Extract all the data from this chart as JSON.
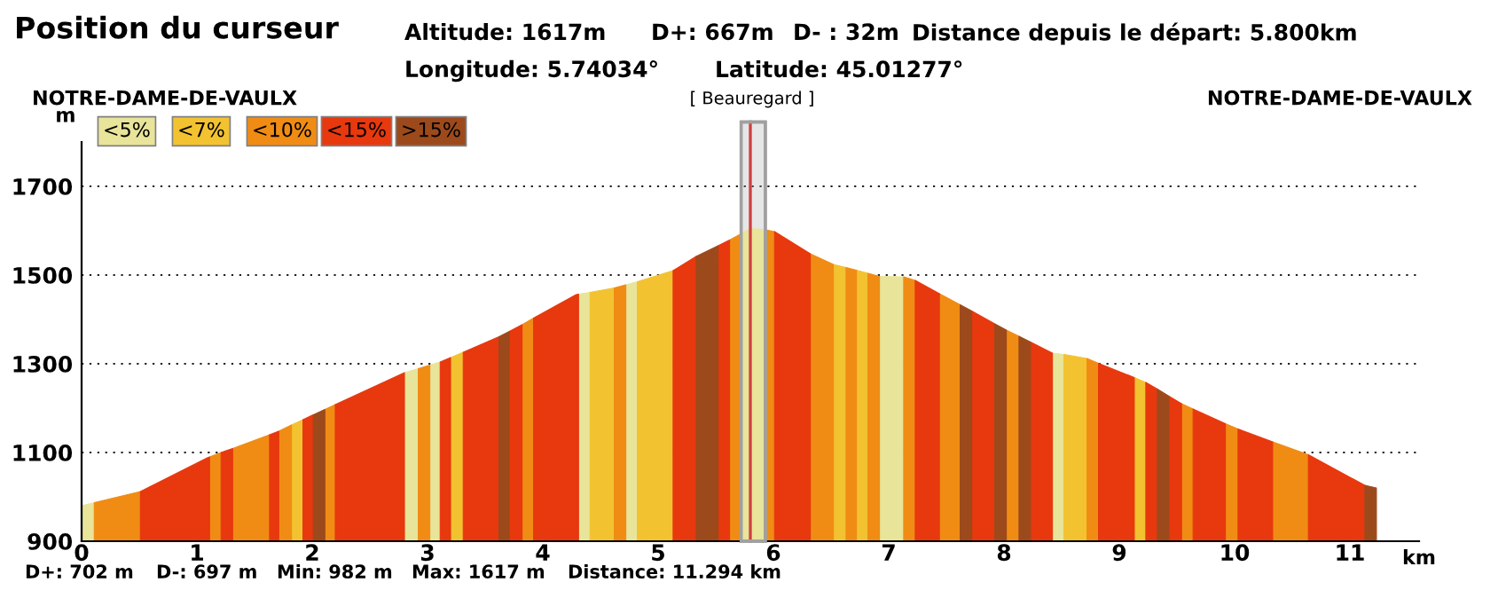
{
  "chart_data": {
    "type": "area",
    "title": "Position du curseur",
    "ylabel": "m",
    "xlabel": "km",
    "annotations": [
      "Altitude: 1617m",
      "D+: 667m",
      "D- : 32m",
      "Distance depuis le départ: 5.800km",
      "Longitude: 5.74034°",
      "Latitude: 45.01277°",
      "NOTRE-DAME-DE-VAULX",
      "[ Beauregard ]",
      "NOTRE-DAME-DE-VAULX",
      "D+: 702 m",
      "D-: 697 m",
      "Min: 982 m",
      "Max: 1617 m",
      "Distance: 11.294 km"
    ],
    "series": [
      {
        "name": "<5%",
        "color": "#e8e49a",
        "x": [
          0,
          0.11,
          null,
          2.8,
          2.92,
          null,
          3.02,
          3.11,
          null,
          4.31,
          4.41,
          null,
          4.72,
          4.82,
          null,
          5.72,
          5.8,
          5.93,
          null,
          6.92,
          7.13,
          null,
          8.42,
          8.52
        ],
        "values": [
          980,
          987,
          null,
          1280,
          1289,
          null,
          1297,
          1304,
          null,
          1457,
          1461,
          null,
          1478,
          1485,
          null,
          1593,
          1605,
          1602,
          null,
          1497,
          1496,
          null,
          1324,
          1321
        ]
      },
      {
        "name": "<7%",
        "color": "#f2c231",
        "x": [
          1.82,
          1.92,
          null,
          3.2,
          3.31,
          null,
          4.41,
          4.62,
          null,
          4.82,
          5.13,
          null,
          6.52,
          6.63,
          null,
          6.72,
          6.82,
          null,
          8.52,
          8.72,
          null,
          9.13,
          9.23
        ],
        "values": [
          1162,
          1174,
          null,
          1314,
          1326,
          null,
          1461,
          1471,
          null,
          1485,
          1510,
          null,
          1524,
          1517,
          null,
          1511,
          1504,
          null,
          1321,
          1312,
          null,
          1269,
          1258
        ]
      },
      {
        "name": "<10%",
        "color": "#f08c14",
        "x": [
          0.11,
          0.51,
          null,
          1.11,
          1.21,
          null,
          1.31,
          1.63,
          null,
          1.71,
          1.82,
          null,
          2.11,
          2.2,
          null,
          2.92,
          3.02,
          null,
          3.82,
          3.92,
          null,
          4.62,
          4.72,
          null,
          5.62,
          5.72,
          null,
          5.93,
          6.01,
          null,
          6.32,
          6.52,
          null,
          6.63,
          6.72,
          null,
          6.82,
          6.92,
          null,
          7.13,
          7.23,
          null,
          7.44,
          7.62,
          null,
          8.02,
          8.13,
          null,
          8.72,
          8.82,
          null,
          9.54,
          9.64,
          null,
          9.92,
          10.03,
          null,
          10.33,
          10.64
        ],
        "values": [
          987,
          1012,
          null,
          1090,
          1100,
          null,
          1109,
          1140,
          null,
          1148,
          1162,
          null,
          1197,
          1208,
          null,
          1289,
          1297,
          null,
          1388,
          1403,
          null,
          1471,
          1478,
          null,
          1579,
          1593,
          null,
          1602,
          1598,
          null,
          1548,
          1524,
          null,
          1517,
          1511,
          null,
          1504,
          1497,
          null,
          1496,
          1488,
          null,
          1458,
          1433,
          null,
          1376,
          1362,
          null,
          1312,
          1301,
          null,
          1210,
          1198,
          null,
          1165,
          1153,
          null,
          1124,
          1095
        ]
      },
      {
        "name": "<15%",
        "color": "#e8380e",
        "x": [
          0.51,
          1.09,
          1.11,
          null,
          1.21,
          1.31,
          null,
          1.63,
          1.71,
          null,
          1.92,
          2.0,
          2.01,
          null,
          2.2,
          2.8,
          null,
          3.11,
          3.2,
          null,
          3.31,
          3.62,
          null,
          3.71,
          3.82,
          null,
          3.92,
          4.29,
          4.31,
          null,
          5.13,
          5.33,
          null,
          5.52,
          5.62,
          null,
          6.01,
          6.32,
          null,
          7.23,
          7.44,
          null,
          7.72,
          7.92,
          null,
          8.23,
          8.42,
          null,
          8.82,
          9.13,
          null,
          9.23,
          9.33,
          null,
          9.43,
          9.54,
          null,
          9.64,
          9.92,
          null,
          10.03,
          10.33,
          null,
          10.64,
          11.13
        ],
        "values": [
          1012,
          1088,
          1090,
          null,
          1100,
          1109,
          null,
          1140,
          1148,
          null,
          1174,
          1184,
          1185,
          null,
          1208,
          1280,
          null,
          1304,
          1314,
          null,
          1326,
          1361,
          null,
          1373,
          1388,
          null,
          1403,
          1456,
          1457,
          null,
          1510,
          1542,
          null,
          1566,
          1579,
          null,
          1598,
          1548,
          null,
          1488,
          1458,
          null,
          1419,
          1390,
          null,
          1349,
          1324,
          null,
          1301,
          1269,
          null,
          1258,
          1243,
          null,
          1227,
          1210,
          null,
          1198,
          1165,
          null,
          1153,
          1124,
          null,
          1095,
          1026
        ]
      },
      {
        "name": ">15%",
        "color": "#9c4a1c",
        "x": [
          2.01,
          2.11,
          null,
          3.62,
          3.71,
          null,
          5.33,
          5.52,
          null,
          7.62,
          7.72,
          null,
          7.92,
          8.02,
          null,
          8.13,
          8.23,
          null,
          9.33,
          9.43,
          null,
          11.13,
          11.23
        ],
        "values": [
          1185,
          1197,
          null,
          1361,
          1373,
          null,
          1542,
          1566,
          null,
          1433,
          1419,
          null,
          1390,
          1376,
          null,
          1362,
          1349,
          null,
          1243,
          1227,
          null,
          1026,
          1020
        ]
      }
    ],
    "ref_lines": [
      {
        "axis": "x",
        "value": 5.8,
        "color": "#d04040"
      }
    ],
    "bands": [
      {
        "axis": "x",
        "from": 5.72,
        "to": 5.93,
        "color": "#a0a0a0"
      }
    ],
    "xlim": [
      0,
      11.6
    ],
    "ylim": [
      900,
      1800
    ],
    "xticks": [
      0,
      1,
      2,
      3,
      4,
      5,
      6,
      7,
      8,
      9,
      10,
      11
    ],
    "yticks": [
      900,
      1100,
      1300,
      1500,
      1700
    ],
    "grid": "y",
    "legend": "top left"
  }
}
